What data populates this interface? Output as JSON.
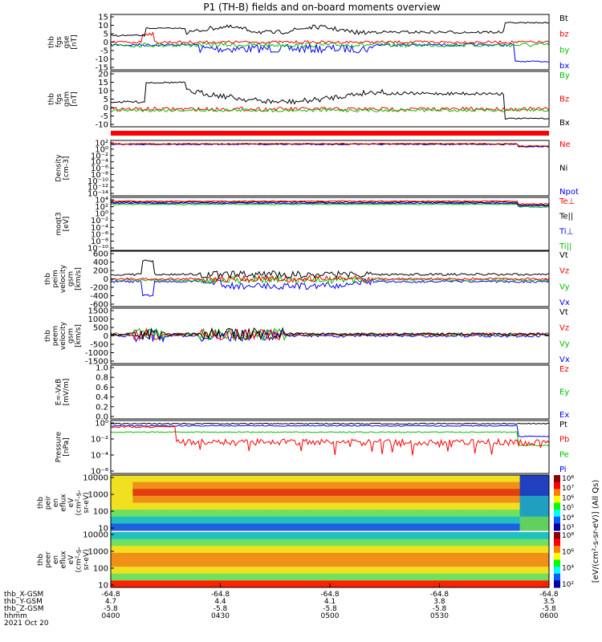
{
  "title": "P1 (TH-B) fields and on-board moments overview",
  "chart_data": [
    {
      "type": "line",
      "ylabel": [
        "thb",
        "fgs",
        "gse",
        "[nT]"
      ],
      "ylim": [
        -15,
        15
      ],
      "yticks": [
        "15",
        "10",
        "5",
        "0",
        "-5",
        "-10",
        "-15"
      ],
      "series": [
        {
          "name": "Bt",
          "color": "#000000"
        },
        {
          "name": "bz",
          "color": "#ff0000"
        },
        {
          "name": "by",
          "color": "#00c000"
        },
        {
          "name": "bx",
          "color": "#0000ff"
        }
      ]
    },
    {
      "type": "line",
      "ylabel": [
        "thb",
        "fgs",
        "gsm",
        "[nT]"
      ],
      "ylim": [
        -10,
        20
      ],
      "yticks": [
        "20",
        "15",
        "10",
        "5",
        "0",
        "-5",
        "-10"
      ],
      "series": [
        {
          "name": "By",
          "color": "#00c000"
        },
        {
          "name": "Bz",
          "color": "#ff0000"
        },
        {
          "name": "Bx",
          "color": "#000000"
        }
      ]
    },
    {
      "type": "line",
      "ylabel": [
        "Density",
        "[cm-3]"
      ],
      "scale": "log",
      "ylim": [
        1e-14,
        100
      ],
      "yticks": [
        "10²",
        "10⁰",
        "10⁻²",
        "10⁻⁴",
        "10⁻⁶",
        "10⁻⁸",
        "10⁻¹⁰",
        "10⁻¹²",
        "10⁻¹⁴"
      ],
      "series": [
        {
          "name": "Ne",
          "color": "#ff0000"
        },
        {
          "name": "Ni",
          "color": "#000000"
        },
        {
          "name": "Npot",
          "color": "#0000ff"
        }
      ]
    },
    {
      "type": "line",
      "ylabel": [
        "moqt3",
        "[eV]"
      ],
      "scale": "log",
      "ylim": [
        1e-10,
        10000
      ],
      "yticks": [
        "10⁴",
        "10²",
        "10⁰",
        "10⁻²",
        "10⁻⁴",
        "10⁻⁶",
        "10⁻⁸",
        "10⁻¹⁰"
      ],
      "series": [
        {
          "name": "Te⊥",
          "color": "#ff0000"
        },
        {
          "name": "Te||",
          "color": "#000000"
        },
        {
          "name": "Ti⊥",
          "color": "#0000ff"
        },
        {
          "name": "Ti||",
          "color": "#00c000"
        }
      ]
    },
    {
      "type": "line",
      "ylabel": [
        "thb",
        "peim",
        "velocity",
        "gsm",
        "[km/s]"
      ],
      "ylim": [
        -600,
        600
      ],
      "yticks": [
        "600",
        "400",
        "200",
        "0",
        "-200",
        "-400",
        "-600"
      ],
      "series": [
        {
          "name": "Vt",
          "color": "#000000"
        },
        {
          "name": "Vz",
          "color": "#ff0000"
        },
        {
          "name": "Vy",
          "color": "#00c000"
        },
        {
          "name": "Vx",
          "color": "#0000ff"
        }
      ]
    },
    {
      "type": "line",
      "ylabel": [
        "thb",
        "peem",
        "velocity",
        "gsm",
        "[km/s]"
      ],
      "ylim": [
        -1500,
        1500
      ],
      "yticks": [
        "1500",
        "1000",
        "500",
        "0",
        "-500",
        "-1000",
        "-1500"
      ],
      "series": [
        {
          "name": "Vt",
          "color": "#000000"
        },
        {
          "name": "Vz",
          "color": "#ff0000"
        },
        {
          "name": "Vy",
          "color": "#00c000"
        },
        {
          "name": "Vx",
          "color": "#0000ff"
        }
      ]
    },
    {
      "type": "line",
      "ylabel": [
        "E=-VxB",
        "[mV/m]"
      ],
      "ylim": [
        0,
        1
      ],
      "yticks": [
        "1.0",
        "0.8",
        "0.6",
        "0.4",
        "0.2",
        "0.0"
      ],
      "series": [
        {
          "name": "Ez",
          "color": "#ff0000"
        },
        {
          "name": "Ey",
          "color": "#00c000"
        },
        {
          "name": "Ex",
          "color": "#0000ff"
        }
      ]
    },
    {
      "type": "line",
      "ylabel": [
        "Pressure",
        "[nPa]"
      ],
      "scale": "log",
      "ylim": [
        1e-06,
        1
      ],
      "yticks": [
        "10⁰",
        "10⁻²",
        "10⁻⁴",
        "10⁻⁶"
      ],
      "series": [
        {
          "name": "Pt",
          "color": "#000000"
        },
        {
          "name": "Pb",
          "color": "#ff0000"
        },
        {
          "name": "Pe",
          "color": "#00c000"
        },
        {
          "name": "Pi",
          "color": "#0000ff"
        }
      ]
    },
    {
      "type": "heatmap",
      "ylabel": [
        "thb",
        "peir",
        "en",
        "eflux",
        "eV",
        "(cm²-s-",
        "sr-eV)"
      ],
      "scale": "log",
      "yticks": [
        "10000",
        "1000",
        "100",
        "10"
      ],
      "colorbar_ticks": [
        "10⁸",
        "10⁷",
        "10⁶",
        "10⁵",
        "10⁴",
        "10³"
      ]
    },
    {
      "type": "heatmap",
      "ylabel": [
        "thb",
        "peer",
        "en",
        "eflux",
        "eV",
        "(cm²-s-",
        "sr-eV)"
      ],
      "scale": "log",
      "yticks": [
        "10000",
        "1000",
        "100",
        "10"
      ],
      "colorbar_ticks": [
        "10⁸",
        "10⁶",
        "10⁴",
        "10²"
      ]
    }
  ],
  "colorbar_label": "[eV/(cm²-s-sr-eV)] (All Qs)",
  "xaxis": {
    "row_labels": [
      "thb_X-GSM",
      "thb_Y-GSM",
      "thb_Z-GSM",
      "hhmm",
      "2021 Oct 20"
    ],
    "columns": [
      [
        "-64.8",
        "4.7",
        "-5.8",
        "0400"
      ],
      [
        "-64.8",
        "4.4",
        "-5.8",
        "0430"
      ],
      [
        "-64.8",
        "4.1",
        "-5.8",
        "0500"
      ],
      [
        "-64.8",
        "3.8",
        "-5.8",
        "0530"
      ],
      [
        "-64.8",
        "3.5",
        "-5.8",
        "0600"
      ]
    ]
  }
}
